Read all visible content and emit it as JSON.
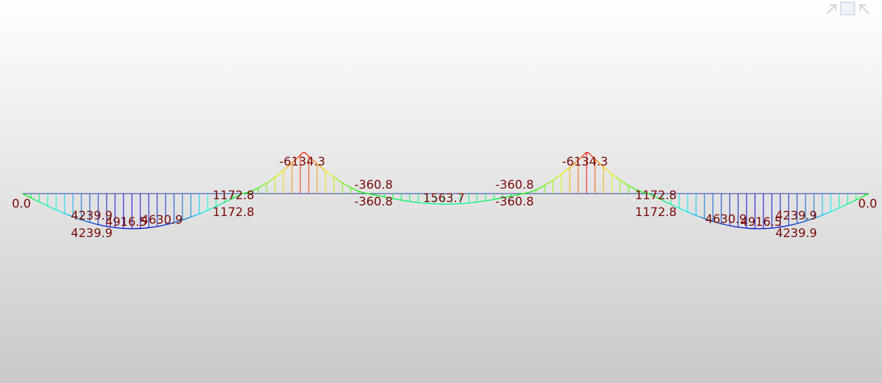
{
  "diagram": {
    "labels": [
      "0.0",
      "4239.9",
      "4916.5",
      "4630.9",
      "4239.9",
      "1172.8",
      "1172.8",
      "-6134.3",
      "-360.8",
      "-360.8",
      "1563.7",
      "-360.8",
      "-360.8",
      "-6134.3",
      "1172.8",
      "1172.8",
      "4630.9",
      "4916.5",
      "4239.9",
      "4239.9",
      "0.0"
    ]
  }
}
